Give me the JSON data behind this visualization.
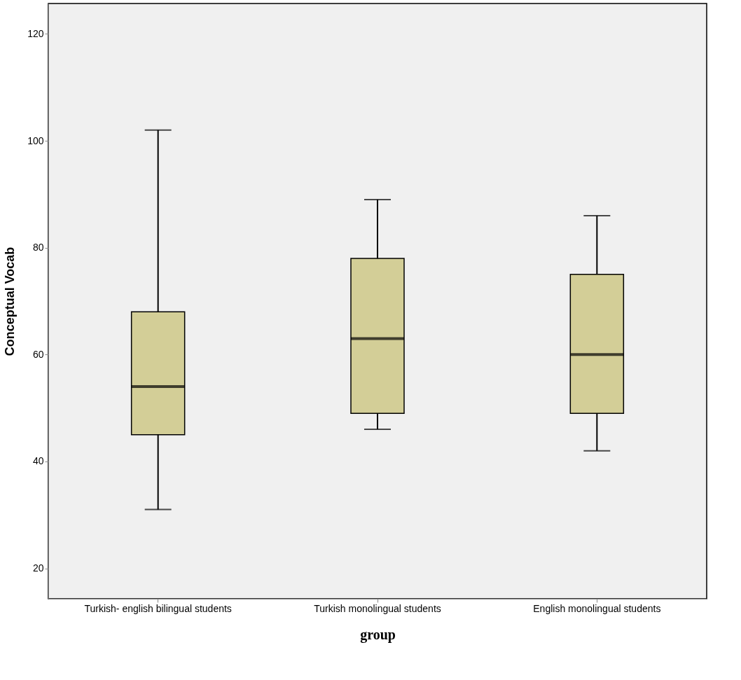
{
  "chart_data": {
    "type": "box",
    "xlabel": "group",
    "ylabel": "Conceptual Vocab",
    "categories": [
      "Turkish- english bilingual students",
      "Turkish monolingual students",
      "English monolingual students"
    ],
    "boxes": [
      {
        "low": 31,
        "q1": 45,
        "median": 54,
        "q3": 68,
        "high": 102
      },
      {
        "low": 46,
        "q1": 49,
        "median": 63,
        "q3": 78,
        "high": 89
      },
      {
        "low": 42,
        "q1": 49,
        "median": 60,
        "q3": 75,
        "high": 86
      }
    ],
    "color": "#d3ce97",
    "ylim": [
      14.3,
      125.7
    ],
    "yticks": [
      20,
      40,
      60,
      80,
      100,
      120
    ],
    "grid": false
  }
}
